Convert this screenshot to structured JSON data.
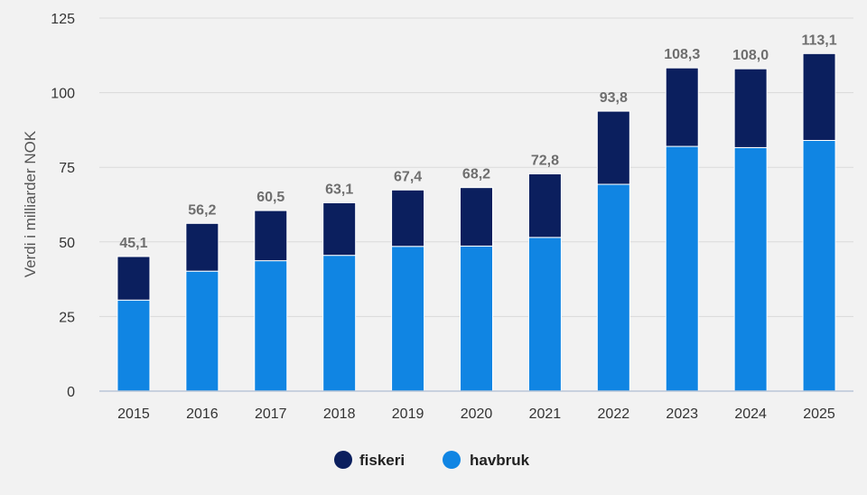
{
  "chart_data": {
    "type": "bar",
    "stacked": true,
    "categories": [
      "2015",
      "2016",
      "2017",
      "2018",
      "2019",
      "2020",
      "2021",
      "2022",
      "2023",
      "2024",
      "2025"
    ],
    "series": [
      {
        "name": "havbruk",
        "values": [
          30.5,
          40.2,
          43.7,
          45.5,
          48.5,
          48.6,
          51.5,
          69.3,
          82.0,
          81.6,
          84.0
        ],
        "color": "#1085e3"
      },
      {
        "name": "fiskeri",
        "values": [
          14.6,
          16.0,
          16.8,
          17.6,
          18.9,
          19.6,
          21.3,
          24.5,
          26.3,
          26.4,
          29.1
        ],
        "color": "#0b1f5e"
      }
    ],
    "totals": [
      45.1,
      56.2,
      60.5,
      63.1,
      67.4,
      68.2,
      72.8,
      93.8,
      108.3,
      108.0,
      113.1
    ],
    "total_labels": [
      "45,1",
      "56,2",
      "60,5",
      "63,1",
      "67,4",
      "68,2",
      "72,8",
      "93,8",
      "108,3",
      "108,0",
      "113,1"
    ],
    "yticks": [
      0,
      25,
      50,
      75,
      100,
      125
    ],
    "ylim": [
      0,
      125
    ],
    "ylabel": "Verdi i milliarder NOK",
    "xlabel": "",
    "legend": [
      {
        "label": "fiskeri",
        "color": "#0b1f5e"
      },
      {
        "label": "havbruk",
        "color": "#1085e3"
      }
    ],
    "legend_position": "bottom-center",
    "grid": true
  }
}
